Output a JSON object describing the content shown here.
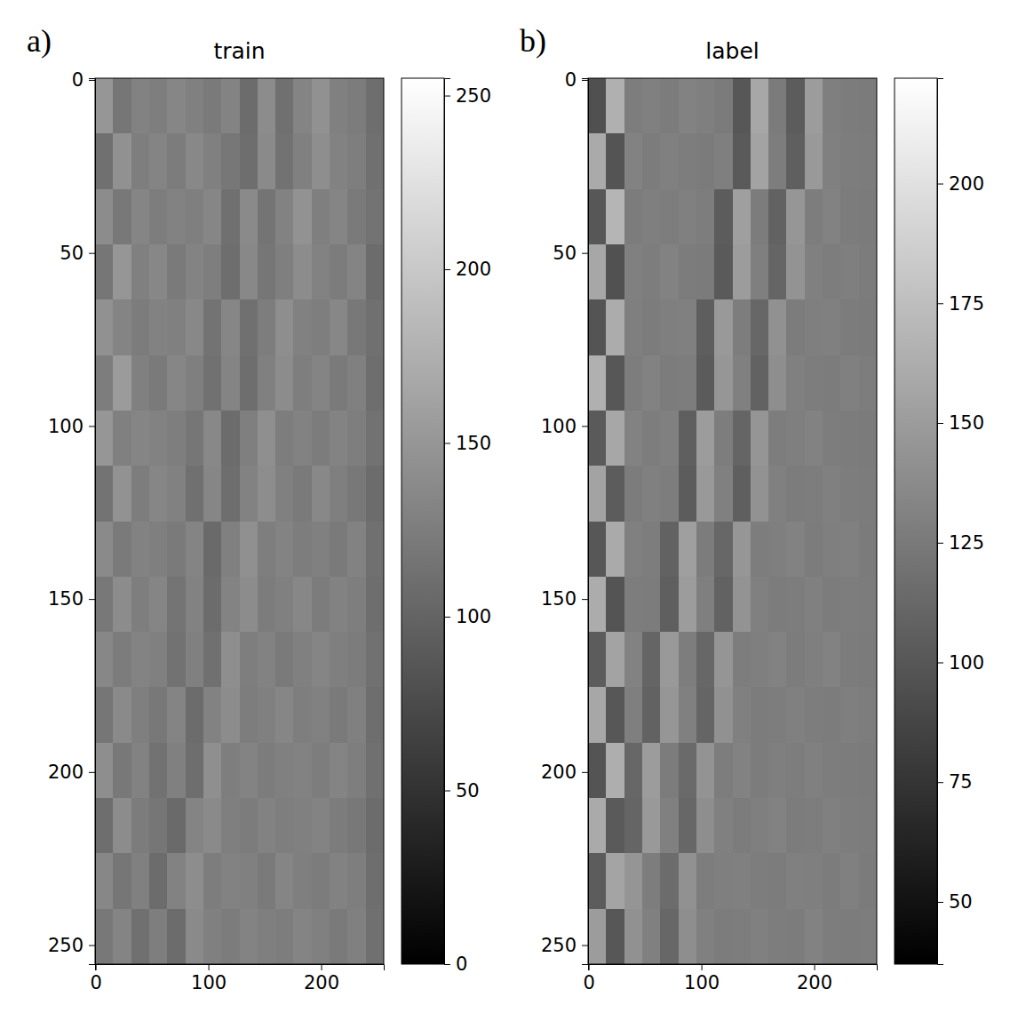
{
  "chart_data": [
    {
      "type": "heatmap",
      "panel_label": "a)",
      "title": "train",
      "xlim": [
        -0.5,
        255.5
      ],
      "ylim": [
        255.5,
        -0.5
      ],
      "xticks": [
        0,
        100,
        200
      ],
      "yticks": [
        0,
        50,
        100,
        150,
        200,
        250
      ],
      "x_edges": [
        -0.5,
        15.5,
        31.5,
        47.5,
        63.5,
        79.5,
        95.5,
        111.5,
        127.5,
        143.5,
        159.5,
        175.5,
        191.5,
        207.5,
        223.5,
        239.5,
        255.5
      ],
      "y_edges": [
        -0.5,
        15.5,
        31.5,
        47.5,
        63.5,
        79.5,
        95.5,
        111.5,
        127.5,
        143.5,
        159.5,
        175.5,
        191.5,
        207.5,
        223.5,
        239.5,
        255.5
      ],
      "color_range": [
        0,
        255
      ],
      "color_ticks": [
        0,
        50,
        100,
        150,
        200,
        250
      ],
      "cells": [
        [
          150,
          118,
          130,
          126,
          134,
          128,
          122,
          131,
          108,
          140,
          112,
          132,
          145,
          128,
          124,
          110
        ],
        [
          112,
          145,
          126,
          132,
          124,
          136,
          128,
          119,
          110,
          138,
          114,
          128,
          142,
          130,
          126,
          112
        ],
        [
          140,
          120,
          133,
          125,
          130,
          127,
          134,
          112,
          138,
          116,
          130,
          146,
          127,
          133,
          122,
          115
        ],
        [
          118,
          150,
          128,
          135,
          122,
          131,
          126,
          110,
          136,
          118,
          127,
          140,
          130,
          124,
          132,
          108
        ],
        [
          145,
          132,
          124,
          130,
          128,
          136,
          115,
          134,
          112,
          125,
          142,
          129,
          126,
          135,
          120,
          112
        ],
        [
          125,
          155,
          128,
          122,
          134,
          127,
          113,
          132,
          110,
          128,
          140,
          126,
          132,
          122,
          128,
          110
        ],
        [
          150,
          128,
          133,
          130,
          126,
          118,
          136,
          108,
          127,
          143,
          125,
          130,
          124,
          131,
          126,
          114
        ],
        [
          115,
          146,
          125,
          134,
          129,
          112,
          134,
          110,
          130,
          141,
          128,
          122,
          136,
          127,
          120,
          108
        ],
        [
          138,
          122,
          130,
          127,
          122,
          132,
          106,
          128,
          144,
          126,
          131,
          125,
          128,
          122,
          130,
          112
        ],
        [
          120,
          140,
          126,
          133,
          116,
          130,
          108,
          131,
          140,
          124,
          128,
          135,
          124,
          130,
          126,
          110
        ],
        [
          135,
          124,
          131,
          128,
          114,
          128,
          112,
          142,
          126,
          130,
          122,
          128,
          133,
          127,
          124,
          113
        ],
        [
          118,
          138,
          127,
          120,
          132,
          108,
          130,
          140,
          125,
          128,
          134,
          126,
          129,
          122,
          128,
          110
        ],
        [
          142,
          120,
          130,
          114,
          128,
          110,
          143,
          126,
          131,
          124,
          128,
          130,
          125,
          132,
          126,
          112
        ],
        [
          110,
          140,
          124,
          118,
          106,
          132,
          138,
          127,
          124,
          130,
          126,
          128,
          131,
          124,
          120,
          108
        ],
        [
          135,
          118,
          128,
          108,
          130,
          141,
          125,
          130,
          128,
          122,
          133,
          127,
          124,
          130,
          126,
          110
        ],
        [
          120,
          132,
          112,
          126,
          108,
          138,
          128,
          124,
          131,
          127,
          125,
          132,
          128,
          122,
          128,
          112
        ]
      ]
    },
    {
      "type": "heatmap",
      "panel_label": "b)",
      "title": "label",
      "xlim": [
        -0.5,
        255.5
      ],
      "ylim": [
        255.5,
        -0.5
      ],
      "xticks": [
        0,
        100,
        200
      ],
      "yticks": [
        0,
        50,
        100,
        150,
        200,
        250
      ],
      "x_edges": [
        -0.5,
        15.5,
        31.5,
        47.5,
        63.5,
        79.5,
        95.5,
        111.5,
        127.5,
        143.5,
        159.5,
        175.5,
        191.5,
        207.5,
        223.5,
        239.5,
        255.5
      ],
      "y_edges": [
        -0.5,
        15.5,
        31.5,
        47.5,
        63.5,
        79.5,
        95.5,
        111.5,
        127.5,
        143.5,
        159.5,
        175.5,
        191.5,
        207.5,
        223.5,
        239.5,
        255.5
      ],
      "color_range": [
        37,
        222
      ],
      "color_ticks": [
        50,
        75,
        100,
        125,
        150,
        175,
        200
      ],
      "cells": [
        [
          95,
          165,
          128,
          130,
          127,
          131,
          129,
          126,
          100,
          158,
          126,
          104,
          150,
          129,
          127,
          126
        ],
        [
          160,
          98,
          131,
          127,
          130,
          128,
          126,
          129,
          102,
          155,
          128,
          106,
          148,
          130,
          128,
          127
        ],
        [
          100,
          168,
          127,
          129,
          128,
          130,
          128,
          104,
          152,
          127,
          108,
          146,
          128,
          131,
          127,
          126
        ],
        [
          158,
          96,
          130,
          128,
          131,
          127,
          126,
          102,
          150,
          129,
          110,
          144,
          130,
          128,
          129,
          127
        ],
        [
          98,
          162,
          129,
          127,
          129,
          130,
          105,
          148,
          128,
          112,
          142,
          127,
          129,
          130,
          127,
          126
        ],
        [
          165,
          100,
          128,
          131,
          127,
          128,
          103,
          146,
          130,
          108,
          140,
          130,
          128,
          127,
          130,
          128
        ],
        [
          102,
          158,
          131,
          128,
          130,
          106,
          150,
          128,
          110,
          145,
          128,
          129,
          131,
          128,
          127,
          126
        ],
        [
          155,
          104,
          127,
          130,
          128,
          104,
          148,
          130,
          106,
          143,
          130,
          127,
          128,
          130,
          128,
          127
        ],
        [
          100,
          160,
          130,
          128,
          108,
          152,
          127,
          112,
          146,
          128,
          129,
          131,
          127,
          129,
          130,
          126
        ],
        [
          162,
          98,
          128,
          127,
          106,
          150,
          129,
          108,
          144,
          130,
          127,
          128,
          130,
          127,
          128,
          127
        ],
        [
          104,
          155,
          131,
          110,
          148,
          128,
          112,
          145,
          128,
          129,
          131,
          127,
          129,
          131,
          127,
          126
        ],
        [
          158,
          100,
          129,
          108,
          146,
          130,
          110,
          142,
          130,
          127,
          128,
          130,
          128,
          127,
          129,
          128
        ],
        [
          98,
          163,
          112,
          150,
          127,
          114,
          144,
          128,
          131,
          127,
          129,
          128,
          130,
          128,
          127,
          126
        ],
        [
          160,
          102,
          110,
          148,
          130,
          112,
          140,
          130,
          127,
          129,
          131,
          127,
          128,
          130,
          128,
          127
        ],
        [
          104,
          156,
          145,
          128,
          115,
          142,
          128,
          129,
          130,
          128,
          127,
          130,
          129,
          127,
          130,
          126
        ],
        [
          150,
          100,
          142,
          130,
          112,
          140,
          130,
          127,
          128,
          130,
          128,
          127,
          131,
          128,
          127,
          128
        ]
      ]
    }
  ]
}
